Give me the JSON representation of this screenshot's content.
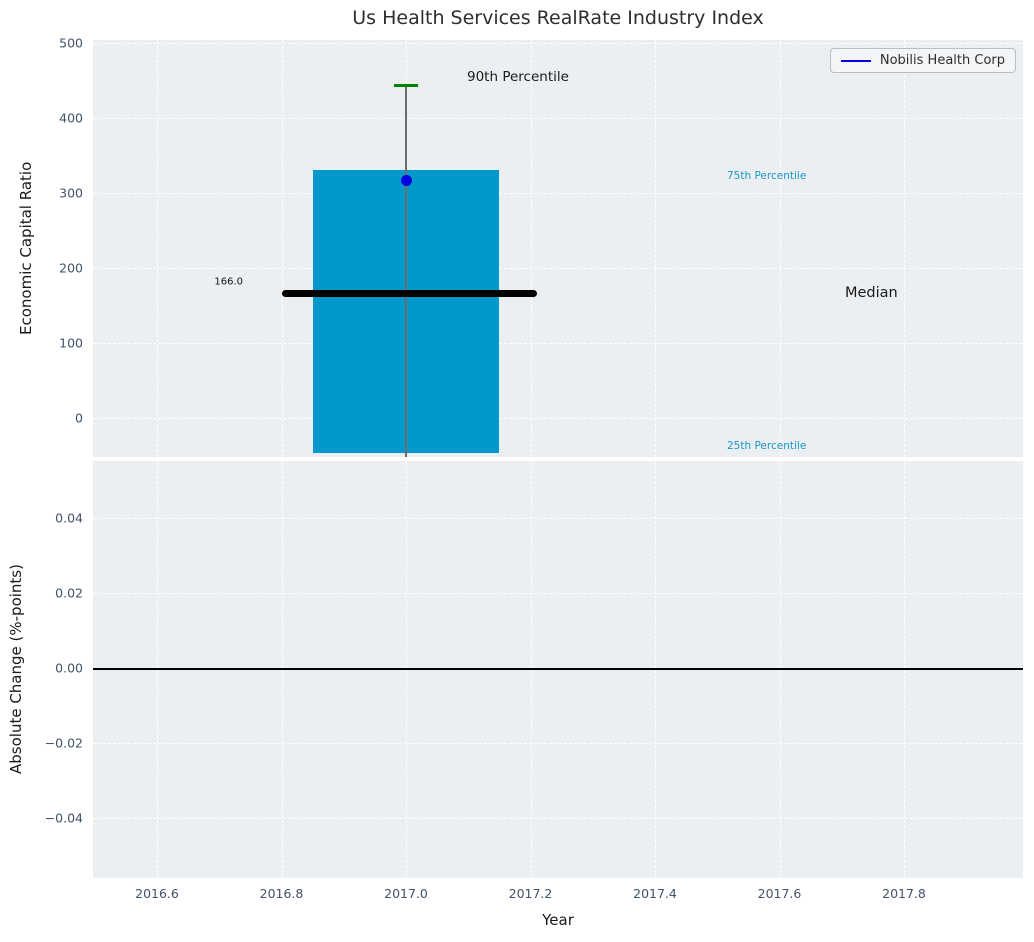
{
  "title": "Us Health Services RealRate Industry Index",
  "legend": {
    "label": "Nobilis Health Corp"
  },
  "colors": {
    "bar": "#0099cc",
    "whisker_line": "#6b6b6b",
    "whisker_cap": "#007f00",
    "median_line": "#000000",
    "company_marker": "#0000e0",
    "percentile_label": "#1898c6",
    "axes_bg": "#eceff1",
    "grid": "#ffffff",
    "tick_label": "#43526b",
    "zero_line": "#000000"
  },
  "top_plot": {
    "ylabel": "Economic Capital Ratio",
    "ytick_values": [
      0,
      100,
      200,
      300,
      400,
      500
    ],
    "ytick_labels": [
      "0",
      "100",
      "200",
      "300",
      "400",
      "500"
    ],
    "annotations": {
      "p90": "90th Percentile",
      "p75": "75th Percentile",
      "p25": "25th Percentile",
      "median": "Median",
      "median_value": "166.0"
    }
  },
  "bottom_plot": {
    "ylabel": "Absolute Change (%-points)",
    "xlabel": "Year",
    "ytick_values": [
      0.04,
      0.02,
      0.0,
      -0.02,
      -0.04
    ],
    "ytick_labels": [
      "0.04",
      "0.02",
      "0.00",
      "−0.02",
      "−0.04"
    ],
    "xtick_values": [
      2016.6,
      2016.8,
      2017.0,
      2017.2,
      2017.4,
      2017.6,
      2017.8
    ],
    "xtick_labels": [
      "2016.6",
      "2016.8",
      "2017.0",
      "2017.2",
      "2017.4",
      "2017.6",
      "2017.8"
    ]
  },
  "chart_data": [
    {
      "type": "bar",
      "title": "Us Health Services RealRate Industry Index",
      "ylabel": "Economic Capital Ratio",
      "x": 2017.0,
      "bar_x_range": [
        2016.85,
        2017.15
      ],
      "median_line_x_range": [
        2016.8,
        2017.21
      ],
      "percentiles": {
        "p25": -46,
        "median": 166.0,
        "p75": 331,
        "p90": 443
      },
      "series": [
        {
          "name": "Nobilis Health Corp",
          "x": 2017.0,
          "y": 317,
          "marker": "circle"
        }
      ],
      "ylim": [
        -56,
        506
      ],
      "xlim": [
        2016.5,
        2018.0
      ],
      "grid": true,
      "legend_position": "upper right"
    },
    {
      "type": "line",
      "ylabel": "Absolute Change (%-points)",
      "xlabel": "Year",
      "x": [],
      "y": [],
      "zero_line": 0.0,
      "ylim": [
        -0.056,
        0.056
      ],
      "xlim": [
        2016.5,
        2018.0
      ],
      "grid": true
    }
  ]
}
